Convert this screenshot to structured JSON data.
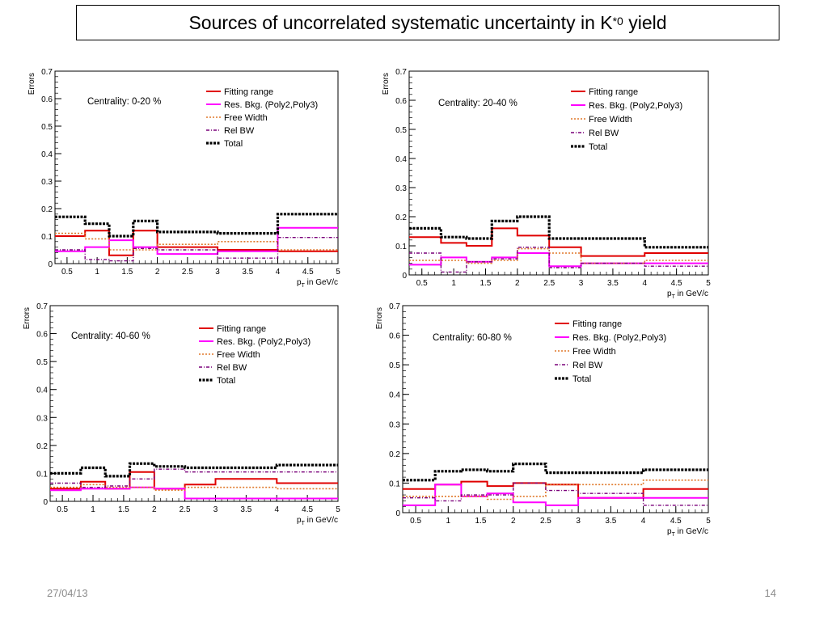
{
  "slide": {
    "title_main": "Sources of uncorrelated systematic uncertainty in K",
    "title_sup": "*0",
    "title_end": " yield",
    "date": "27/04/13",
    "page_number": "14"
  },
  "legend_labels": [
    "Fitting range",
    "Res. Bkg. (Poly2,Poly3)",
    "Free Width",
    "Rel BW",
    "Total"
  ],
  "series_colors": {
    "Fitting range": "#e00000",
    "Res. Bkg. (Poly2,Poly3)": "#ff00ff",
    "Free Width": "#e0792b",
    "Rel BW": "#7a007a",
    "Total": "#000000"
  },
  "chart_data": [
    {
      "type": "line",
      "step": true,
      "annotation": "Centrality: 0-20 %",
      "ylabel": "Errors",
      "xlabel_prefix": "p",
      "xlabel_sub": "T",
      "xlabel_suffix": " in GeV/c",
      "xlim": [
        0.3,
        5
      ],
      "ylim": [
        0,
        0.7
      ],
      "x_ticks": [
        "0.5",
        "1",
        "1.5",
        "2",
        "2.5",
        "3",
        "3.5",
        "4",
        "4.5",
        "5"
      ],
      "y_ticks": [
        "0",
        "0.1",
        "0.2",
        "0.3",
        "0.4",
        "0.5",
        "0.6",
        "0.7"
      ],
      "bin_edges": [
        0.3,
        0.8,
        1.2,
        1.6,
        2.0,
        3.0,
        4.0,
        5.0
      ],
      "legend_position": "top-right",
      "series": [
        {
          "name": "Fitting range",
          "values": [
            0.1,
            0.12,
            0.03,
            0.12,
            0.06,
            0.05,
            0.045
          ]
        },
        {
          "name": "Res. Bkg. (Poly2,Poly3)",
          "values": [
            0.045,
            0.06,
            0.085,
            0.06,
            0.035,
            0.045,
            0.13
          ]
        },
        {
          "name": "Free Width",
          "values": [
            0.11,
            0.09,
            0.05,
            0.05,
            0.07,
            0.08,
            0.05
          ]
        },
        {
          "name": "Rel BW",
          "values": [
            0.05,
            0.015,
            0.01,
            0.055,
            0.05,
            0.02,
            0.095
          ]
        },
        {
          "name": "Total",
          "values": [
            0.17,
            0.145,
            0.1,
            0.155,
            0.115,
            0.11,
            0.18
          ]
        }
      ]
    },
    {
      "type": "line",
      "step": true,
      "annotation": "Centrality: 20-40 %",
      "ylabel": "Errors",
      "xlabel_prefix": "p",
      "xlabel_sub": "T",
      "xlabel_suffix": " in GeV/c",
      "xlim": [
        0.3,
        5
      ],
      "ylim": [
        0,
        0.7
      ],
      "x_ticks": [
        "0.5",
        "1",
        "1.5",
        "2",
        "2.5",
        "3",
        "3.5",
        "4",
        "4.5",
        "5"
      ],
      "y_ticks": [
        "0",
        "0.1",
        "0.2",
        "0.3",
        "0.4",
        "0.5",
        "0.6",
        "0.7"
      ],
      "bin_edges": [
        0.3,
        0.8,
        1.2,
        1.6,
        2.0,
        2.5,
        3.0,
        4.0,
        5.0
      ],
      "legend_position": "top-right",
      "series": [
        {
          "name": "Fitting range",
          "values": [
            0.13,
            0.11,
            0.1,
            0.16,
            0.135,
            0.095,
            0.065,
            0.075
          ]
        },
        {
          "name": "Res. Bkg. (Poly2,Poly3)",
          "values": [
            0.035,
            0.06,
            0.045,
            0.06,
            0.075,
            0.03,
            0.04,
            0.04
          ]
        },
        {
          "name": "Free Width",
          "values": [
            0.05,
            0.05,
            0.04,
            0.05,
            0.09,
            0.075,
            0.04,
            0.05
          ]
        },
        {
          "name": "Rel BW",
          "values": [
            0.075,
            0.01,
            0.045,
            0.055,
            0.095,
            0.025,
            0.04,
            0.03
          ]
        },
        {
          "name": "Total",
          "values": [
            0.16,
            0.13,
            0.125,
            0.185,
            0.2,
            0.125,
            0.125,
            0.095
          ]
        }
      ]
    },
    {
      "type": "line",
      "step": true,
      "annotation": "Centrality: 40-60 %",
      "ylabel": "Errors",
      "xlabel_prefix": "p",
      "xlabel_sub": "T",
      "xlabel_suffix": " in GeV/c",
      "xlim": [
        0.3,
        5
      ],
      "ylim": [
        0,
        0.7
      ],
      "x_ticks": [
        "0.5",
        "1",
        "1.5",
        "2",
        "2.5",
        "3",
        "3.5",
        "4",
        "4.5",
        "5"
      ],
      "y_ticks": [
        "0",
        "0.1",
        "0.2",
        "0.3",
        "0.4",
        "0.5",
        "0.6",
        "0.7"
      ],
      "bin_edges": [
        0.3,
        0.8,
        1.2,
        1.6,
        2.0,
        2.5,
        3.0,
        4.0,
        5.0
      ],
      "legend_position": "top-right",
      "series": [
        {
          "name": "Fitting range",
          "values": [
            0.045,
            0.07,
            0.045,
            0.105,
            0.045,
            0.06,
            0.08,
            0.065
          ]
        },
        {
          "name": "Res. Bkg. (Poly2,Poly3)",
          "values": [
            0.04,
            0.045,
            0.045,
            0.05,
            0.045,
            0.01,
            0.01,
            0.01
          ]
        },
        {
          "name": "Free Width",
          "values": [
            0.05,
            0.06,
            0.05,
            0.05,
            0.04,
            0.05,
            0.05,
            0.045
          ]
        },
        {
          "name": "Rel BW",
          "values": [
            0.065,
            0.05,
            0.055,
            0.08,
            0.115,
            0.105,
            0.105,
            0.105
          ]
        },
        {
          "name": "Total",
          "values": [
            0.1,
            0.12,
            0.09,
            0.135,
            0.125,
            0.12,
            0.12,
            0.13
          ]
        }
      ]
    },
    {
      "type": "line",
      "step": true,
      "annotation": "Centrality: 60-80 %",
      "ylabel": "Errors",
      "xlabel_prefix": "p",
      "xlabel_sub": "T",
      "xlabel_suffix": " in GeV/c",
      "xlim": [
        0.3,
        5
      ],
      "ylim": [
        0,
        0.7
      ],
      "x_ticks": [
        "0.5",
        "1",
        "1.5",
        "2",
        "2.5",
        "3",
        "3.5",
        "4",
        "4.5",
        "5"
      ],
      "y_ticks": [
        "0",
        "0.1",
        "0.2",
        "0.3",
        "0.4",
        "0.5",
        "0.6",
        "0.7"
      ],
      "bin_edges": [
        0.3,
        0.8,
        1.2,
        1.6,
        2.0,
        2.5,
        3.0,
        4.0,
        5.0
      ],
      "legend_position": "top-right",
      "series": [
        {
          "name": "Fitting range",
          "values": [
            0.08,
            0.095,
            0.105,
            0.09,
            0.1,
            0.095,
            0.05,
            0.08
          ]
        },
        {
          "name": "Res. Bkg. (Poly2,Poly3)",
          "values": [
            0.025,
            0.095,
            0.055,
            0.065,
            0.035,
            0.025,
            0.05,
            0.05
          ]
        },
        {
          "name": "Free Width",
          "values": [
            0.055,
            0.055,
            0.055,
            0.045,
            0.055,
            0.095,
            0.095,
            0.11
          ]
        },
        {
          "name": "Rel BW",
          "values": [
            0.05,
            0.04,
            0.06,
            0.06,
            0.1,
            0.075,
            0.065,
            0.025
          ]
        },
        {
          "name": "Total",
          "values": [
            0.11,
            0.14,
            0.145,
            0.14,
            0.165,
            0.135,
            0.135,
            0.145
          ]
        }
      ]
    }
  ]
}
